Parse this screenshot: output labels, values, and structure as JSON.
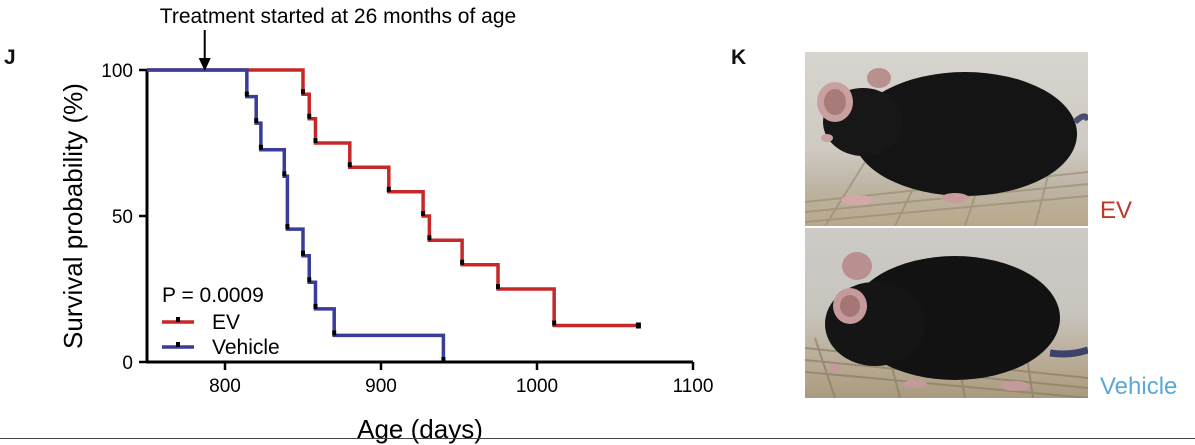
{
  "panels": {
    "j": "J",
    "k": "K"
  },
  "annotation": {
    "text": "Treatment started at 26 months of age",
    "x_value": 787
  },
  "chart_data": {
    "type": "line",
    "subtype": "kaplan-meier-step",
    "xlabel": "Age (days)",
    "ylabel": "Survival probability (%)",
    "xlim": [
      750,
      1100
    ],
    "ylim": [
      0,
      100
    ],
    "xticks": [
      800,
      900,
      1000,
      1100
    ],
    "yticks": [
      0,
      50,
      100
    ],
    "grid": false,
    "legend_position": "bottom-left",
    "pvalue_text": "P = 0.0009",
    "series": [
      {
        "name": "EV",
        "color": "#c62828",
        "x": [
          750,
          850,
          854,
          858,
          880,
          905,
          927,
          931,
          952,
          975,
          1011,
          1065
        ],
        "y": [
          100,
          91.7,
          83.3,
          75,
          66.7,
          58.3,
          50,
          41.7,
          33.3,
          25,
          12.5,
          12.5
        ],
        "censored": [
          {
            "x": 1065,
            "y": 12.5
          }
        ]
      },
      {
        "name": "Vehicle",
        "color": "#3a3c99",
        "x": [
          750,
          814,
          820,
          823,
          838,
          840,
          850,
          854,
          856,
          858,
          870,
          940
        ],
        "y": [
          100,
          90.9,
          81.8,
          72.7,
          63.6,
          45.5,
          36.4,
          27.3,
          27.3,
          18.2,
          9.1,
          0
        ],
        "censored": []
      }
    ]
  },
  "photos": {
    "ev": {
      "label": "EV",
      "label_color": "#c0392b"
    },
    "vehicle": {
      "label": "Vehicle",
      "label_color": "#5aa7d9"
    }
  }
}
